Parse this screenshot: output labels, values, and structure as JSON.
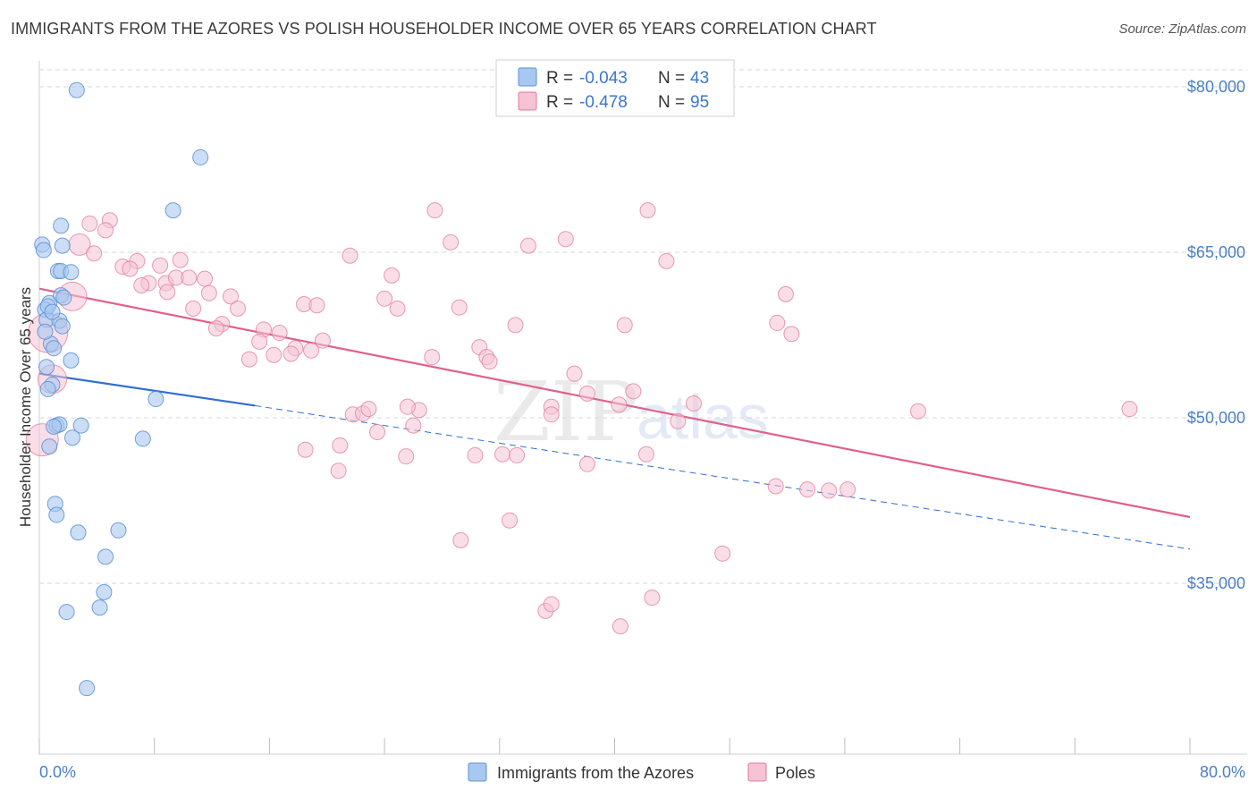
{
  "header": {
    "title": "IMMIGRANTS FROM THE AZORES VS POLISH HOUSEHOLDER INCOME OVER 65 YEARS CORRELATION CHART",
    "source": "Source: ZipAtlas.com"
  },
  "watermark": {
    "zip": "ZIP",
    "atlas": "atlas"
  },
  "legend": {
    "rows": [
      {
        "r_label": "R = ",
        "r_value": "-0.043",
        "n_label": "N = ",
        "n_value": "43",
        "color": "#a9c8f0"
      },
      {
        "r_label": "R = ",
        "r_value": "-0.478",
        "n_label": "N = ",
        "n_value": "95",
        "color": "#f5b8cb"
      }
    ]
  },
  "colors": {
    "azores_fill": "#a9c8f0",
    "azores_stroke": "#5b8fd6",
    "azores_line": "#2f6fd0",
    "poles_fill": "#f5c3d3",
    "poles_stroke": "#e07a9c",
    "poles_line": "#e0608c",
    "grid": "#d7d7d7",
    "axis_text": "#4a7fc4"
  },
  "chart_data": {
    "type": "scatter",
    "xlabel": "",
    "ylabel": "Householder Income Over 65 years",
    "xlim": [
      0,
      80
    ],
    "ylim": [
      22000,
      82000
    ],
    "x_tick_labels": [
      "0.0%",
      "80.0%"
    ],
    "y_ticks": [
      35000,
      50000,
      65000,
      80000
    ],
    "y_tick_labels": [
      "$35,000",
      "$50,000",
      "$65,000",
      "$80,000"
    ],
    "grid": true,
    "legend_position": "top-center",
    "series": [
      {
        "name": "Immigrants from the Azores",
        "r": -0.043,
        "n": 43,
        "trend": {
          "x0": 0,
          "y0": 54000,
          "x1": 15,
          "y1": 51100,
          "dashed_to_x": 80,
          "dashed_to_y": 38100
        },
        "points": [
          [
            2.6,
            79700
          ],
          [
            11.2,
            73600
          ],
          [
            9.3,
            68800
          ],
          [
            1.5,
            67400
          ],
          [
            0.2,
            65700
          ],
          [
            0.3,
            65200
          ],
          [
            1.6,
            65600
          ],
          [
            1.3,
            63300
          ],
          [
            1.5,
            63300
          ],
          [
            2.2,
            63200
          ],
          [
            0.7,
            60400
          ],
          [
            0.4,
            59800
          ],
          [
            1.5,
            61100
          ],
          [
            0.5,
            58900
          ],
          [
            1.4,
            58800
          ],
          [
            1.6,
            58300
          ],
          [
            0.8,
            56700
          ],
          [
            1.0,
            56300
          ],
          [
            2.2,
            55200
          ],
          [
            0.5,
            54600
          ],
          [
            0.9,
            53000
          ],
          [
            0.6,
            52600
          ],
          [
            8.1,
            51700
          ],
          [
            1.2,
            49300
          ],
          [
            1.4,
            49400
          ],
          [
            1.0,
            49200
          ],
          [
            2.9,
            49300
          ],
          [
            2.3,
            48200
          ],
          [
            7.2,
            48100
          ],
          [
            0.7,
            47400
          ],
          [
            1.1,
            42200
          ],
          [
            1.2,
            41200
          ],
          [
            2.7,
            39600
          ],
          [
            5.5,
            39800
          ],
          [
            4.6,
            37400
          ],
          [
            4.5,
            34200
          ],
          [
            1.9,
            32400
          ],
          [
            4.2,
            32800
          ],
          [
            3.3,
            25500
          ],
          [
            0.6,
            60100
          ],
          [
            0.9,
            59600
          ],
          [
            0.4,
            57800
          ],
          [
            1.7,
            60900
          ]
        ]
      },
      {
        "name": "Poles",
        "r": -0.478,
        "n": 95,
        "trend": {
          "x0": 0,
          "y0": 61700,
          "x1": 80,
          "y1": 41000
        },
        "points": [
          [
            3.5,
            67600
          ],
          [
            4.9,
            67900
          ],
          [
            4.6,
            67000
          ],
          [
            2.8,
            65700
          ],
          [
            3.8,
            64900
          ],
          [
            6.8,
            64200
          ],
          [
            5.8,
            63700
          ],
          [
            6.3,
            63500
          ],
          [
            8.4,
            63800
          ],
          [
            9.8,
            64300
          ],
          [
            7.6,
            62200
          ],
          [
            8.8,
            62200
          ],
          [
            9.5,
            62700
          ],
          [
            10.4,
            62700
          ],
          [
            11.5,
            62600
          ],
          [
            7.1,
            62000
          ],
          [
            8.9,
            61400
          ],
          [
            11.8,
            61300
          ],
          [
            13.3,
            61000
          ],
          [
            2.3,
            61000
          ],
          [
            10.7,
            59900
          ],
          [
            13.8,
            59900
          ],
          [
            12.7,
            58500
          ],
          [
            12.3,
            58100
          ],
          [
            15.6,
            58000
          ],
          [
            16.7,
            57700
          ],
          [
            15.3,
            56900
          ],
          [
            17.8,
            56300
          ],
          [
            16.3,
            55700
          ],
          [
            14.6,
            55300
          ],
          [
            17.5,
            55800
          ],
          [
            18.9,
            56100
          ],
          [
            19.7,
            57000
          ],
          [
            18.4,
            60300
          ],
          [
            19.3,
            60200
          ],
          [
            21.6,
            64700
          ],
          [
            24.5,
            62900
          ],
          [
            24.0,
            60800
          ],
          [
            24.9,
            59900
          ],
          [
            27.5,
            68800
          ],
          [
            28.6,
            65900
          ],
          [
            29.2,
            60000
          ],
          [
            30.6,
            56400
          ],
          [
            31.1,
            55500
          ],
          [
            31.3,
            55100
          ],
          [
            27.3,
            55500
          ],
          [
            33.1,
            58400
          ],
          [
            34.0,
            65600
          ],
          [
            36.6,
            66200
          ],
          [
            37.2,
            54000
          ],
          [
            35.6,
            51000
          ],
          [
            38.1,
            52200
          ],
          [
            40.3,
            51200
          ],
          [
            41.3,
            52400
          ],
          [
            42.3,
            68800
          ],
          [
            43.6,
            64200
          ],
          [
            40.7,
            58400
          ],
          [
            44.4,
            49700
          ],
          [
            45.5,
            51300
          ],
          [
            51.3,
            58600
          ],
          [
            52.3,
            57600
          ],
          [
            51.9,
            61200
          ],
          [
            61.1,
            50600
          ],
          [
            75.8,
            50800
          ],
          [
            26.0,
            49300
          ],
          [
            23.5,
            48700
          ],
          [
            26.4,
            50700
          ],
          [
            21.8,
            50300
          ],
          [
            22.5,
            50400
          ],
          [
            22.9,
            50800
          ],
          [
            25.6,
            51000
          ],
          [
            20.9,
            47500
          ],
          [
            18.5,
            47100
          ],
          [
            20.8,
            45200
          ],
          [
            25.5,
            46500
          ],
          [
            30.3,
            46600
          ],
          [
            32.2,
            46700
          ],
          [
            33.2,
            46600
          ],
          [
            35.6,
            50300
          ],
          [
            38.1,
            45800
          ],
          [
            42.2,
            46700
          ],
          [
            51.2,
            43800
          ],
          [
            53.4,
            43500
          ],
          [
            54.9,
            43400
          ],
          [
            56.2,
            43500
          ],
          [
            29.3,
            38900
          ],
          [
            32.7,
            40700
          ],
          [
            47.5,
            37700
          ],
          [
            35.2,
            32500
          ],
          [
            35.6,
            33100
          ],
          [
            42.6,
            33700
          ],
          [
            40.4,
            31100
          ],
          [
            0.6,
            57700
          ],
          [
            0.9,
            53500
          ],
          [
            0.2,
            48000
          ]
        ]
      }
    ]
  },
  "bottom_legend": {
    "items": [
      {
        "label": "Immigrants from the Azores",
        "color": "#a9c8f0"
      },
      {
        "label": "Poles",
        "color": "#f5c3d3"
      }
    ]
  }
}
